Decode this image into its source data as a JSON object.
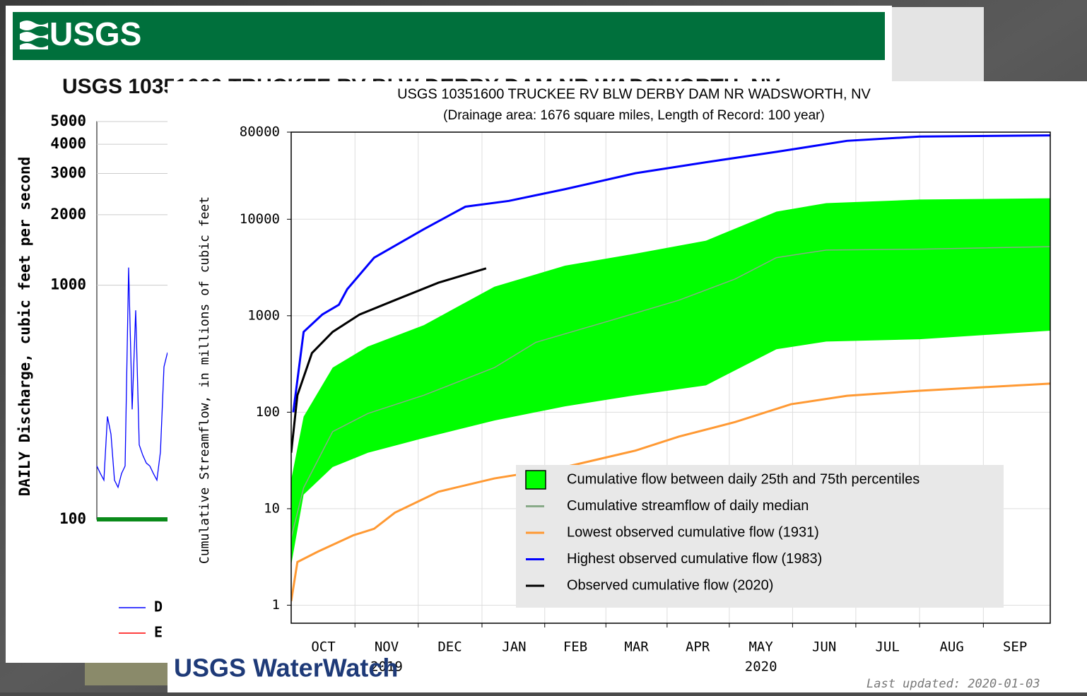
{
  "header": {
    "logo": "USGS"
  },
  "footer": {
    "logo": "USGS WaterWatch",
    "updated": "Last updated: 2020-01-03"
  },
  "chart_data": [
    {
      "type": "line",
      "title": "USGS 10351600 TRUCKEE RV BLW DERBY DAM NR WADSWORTH, NV",
      "ylabel": "DAILY Discharge, cubic feet per second",
      "log_y": true,
      "ylim": [
        100,
        5000
      ],
      "yticks": [
        100,
        1000,
        2000,
        3000,
        4000,
        5000
      ],
      "grid": true,
      "series": [
        {
          "name": "D",
          "color": "#0000ff",
          "values": [
            169,
            157,
            147,
            275,
            231,
            147,
            137,
            157,
            169,
            1190,
            295,
            781,
            208,
            188,
            174,
            169,
            157,
            147,
            194,
            448,
            516
          ]
        },
        {
          "name": "E",
          "color": "#ff0000"
        }
      ]
    },
    {
      "type": "line",
      "title": "USGS 10351600 TRUCKEE RV BLW DERBY DAM NR WADSWORTH, NV",
      "subtitle": "(Drainage area: 1676 square miles, Length of Record: 100 year)",
      "ylabel": "Cumulative Streamflow, in millions of cubic feet",
      "log_y": true,
      "ylim": [
        0.65,
        80000
      ],
      "yticks": [
        1,
        10,
        100,
        1000,
        10000,
        80000
      ],
      "xlim": [
        0,
        366
      ],
      "xticks": [
        {
          "value": 15.5,
          "label": "OCT"
        },
        {
          "value": 46,
          "label": "NOV"
        },
        {
          "value": 76.5,
          "label": "DEC"
        },
        {
          "value": 107.5,
          "label": "JAN"
        },
        {
          "value": 137,
          "label": "FEB"
        },
        {
          "value": 166.5,
          "label": "MAR"
        },
        {
          "value": 196,
          "label": "APR"
        },
        {
          "value": 226.5,
          "label": "MAY"
        },
        {
          "value": 257,
          "label": "JUN"
        },
        {
          "value": 287.5,
          "label": "JUL"
        },
        {
          "value": 318.5,
          "label": "AUG"
        },
        {
          "value": 349,
          "label": "SEP"
        }
      ],
      "year_labels": [
        {
          "value": 46,
          "label": "2019"
        },
        {
          "value": 226.5,
          "label": "2020"
        }
      ],
      "grid": true,
      "legend": "lower right",
      "band": {
        "name": "Cumulative flow between daily 25th and 75th percentiles",
        "color": "#00ff00",
        "x": [
          0,
          6,
          20,
          37,
          64,
          98,
          132,
          166,
          200,
          234,
          258,
          303,
          366
        ],
        "lower": [
          2.6,
          14,
          27,
          38,
          54,
          82,
          115,
          150,
          190,
          450,
          540,
          570,
          700
        ],
        "upper": [
          20,
          90,
          290,
          480,
          800,
          2000,
          3300,
          4400,
          6000,
          12000,
          14700,
          16000,
          16500
        ]
      },
      "series": [
        {
          "name": "Cumulative streamflow of daily median",
          "color": "#88aa88",
          "x": [
            0,
            6,
            20,
            37,
            64,
            98,
            118,
            153,
            187,
            214,
            234,
            258,
            303,
            366
          ],
          "values": [
            5,
            16.5,
            63,
            97,
            150,
            290,
            530,
            880,
            1450,
            2400,
            4000,
            4800,
            4900,
            5200
          ]
        },
        {
          "name": "Lowest observed cumulative flow (1931)",
          "color": "#ff9933",
          "x": [
            0,
            3,
            13,
            30,
            40,
            50,
            71,
            98,
            132,
            166,
            187,
            214,
            241,
            268,
            303,
            366
          ],
          "values": [
            1.1,
            2.8,
            3.6,
            5.3,
            6.2,
            9.1,
            15,
            20.6,
            27,
            40,
            56,
            79,
            121,
            148,
            167,
            198
          ]
        },
        {
          "name": "Highest observed cumulative flow (1983)",
          "color": "#0000ff",
          "x": [
            1,
            6,
            15,
            23,
            27,
            40,
            64,
            84,
            105,
            132,
            166,
            200,
            234,
            268,
            303,
            366
          ],
          "values": [
            100,
            680,
            1030,
            1300,
            1880,
            4000,
            7900,
            13500,
            15500,
            20500,
            30000,
            39000,
            50000,
            65000,
            72000,
            74000
          ]
        },
        {
          "name": "Observed cumulative flow (2020)",
          "color": "#000000",
          "x": [
            0,
            3,
            10,
            20,
            33,
            50,
            71,
            94
          ],
          "values": [
            38,
            150,
            410,
            680,
            1030,
            1450,
            2200,
            3100
          ]
        }
      ]
    }
  ]
}
